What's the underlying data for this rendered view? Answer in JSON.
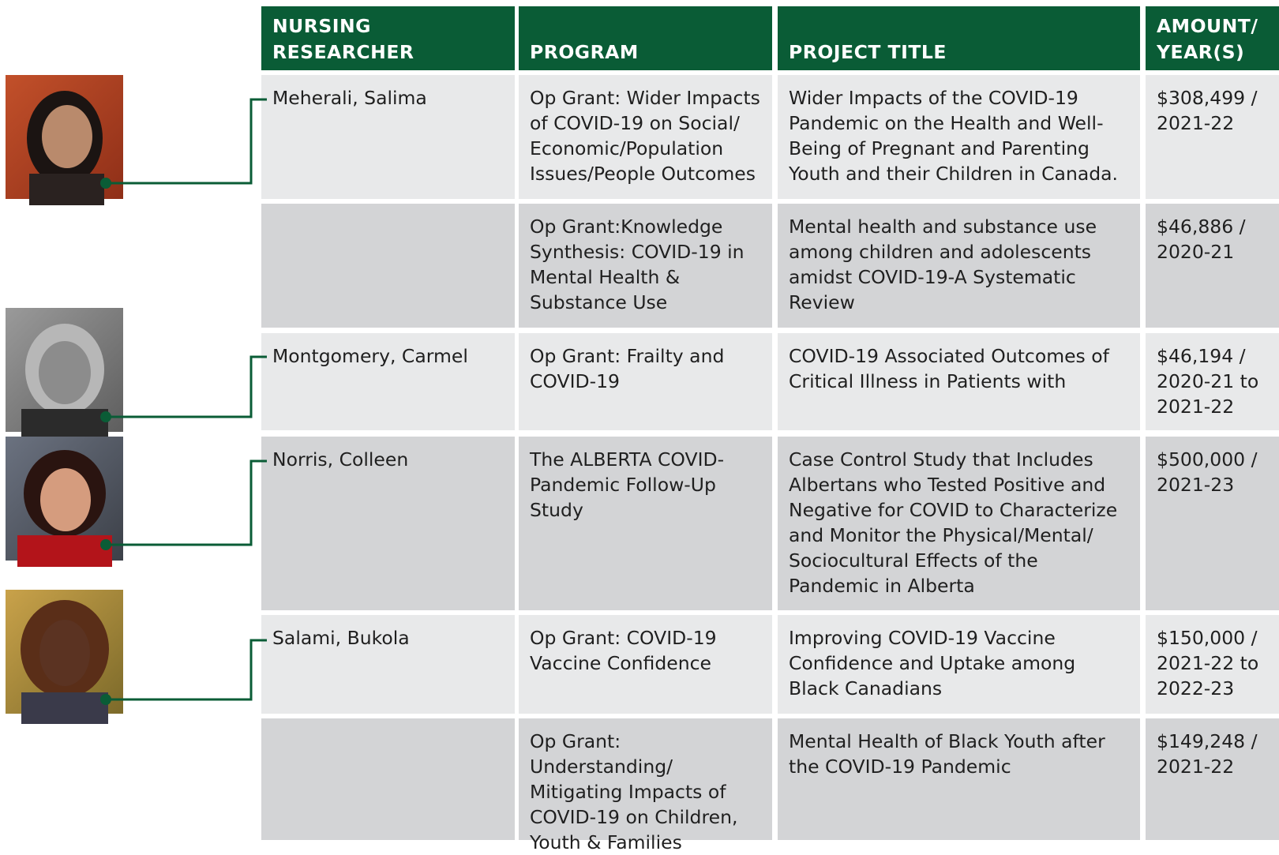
{
  "table": {
    "headers": [
      "NURSING RESEARCHER",
      "PROGRAM",
      "PROJECT TITLE",
      "AMOUNT/ YEAR(S)"
    ],
    "rows": [
      [
        "Meherali, Salima",
        "Op Grant: Wider Impacts of COVID-19 on Social/ Economic/Population Issues/People Outcomes",
        "Wider Impacts of the COVID-19 Pandemic on the Health and Well-Being of Pregnant and Parenting Youth and their Children in Canada.",
        "$308,499 / 2021-22"
      ],
      [
        null,
        "Op Grant:Knowledge Synthesis: COVID-19 in Mental Health & Substance Use",
        "Mental health and substance use among children and adolescents amidst COVID-19-A Systematic Review",
        "$46,886 / 2020-21"
      ],
      [
        "Montgomery, Carmel",
        "Op Grant: Frailty and COVID-19",
        "COVID-19 Associated Outcomes of Critical Illness in Patients with",
        "$46,194 / 2020-21 to 2021-22"
      ],
      [
        "Norris, Colleen",
        "The ALBERTA COVID-Pandemic Follow-Up Study",
        "Case Control Study that Includes Albertans who Tested Positive and Negative for COVID to Characterize and Monitor the Physical/Mental/ Sociocultural Effects of the Pandemic in Alberta",
        "$500,000 / 2021-23"
      ],
      [
        "Salami, Bukola",
        "Op Grant: COVID-19 Vaccine Confidence",
        "Improving COVID-19 Vaccine Confidence and Uptake among Black Canadians",
        "$150,000 / 2021-22 to 2022-23"
      ],
      [
        null,
        "Op Grant: Understanding/ Mitigating Impacts of COVID-19 on Children, Youth & Families",
        "Mental Health of Black Youth after the COVID-19 Pandemic",
        "$149,248 / 2021-22"
      ]
    ]
  }
}
